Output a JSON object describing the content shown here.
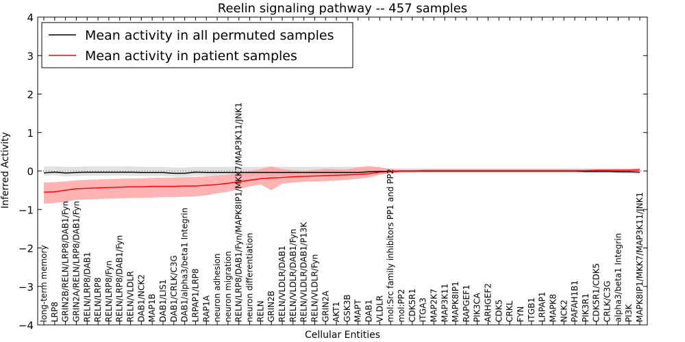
{
  "chart_data": {
    "type": "line",
    "title": "Reelin signaling pathway -- 457 samples",
    "xlabel": "Cellular Entities",
    "ylabel": "Inferred Activity",
    "ylim": [
      -4,
      4
    ],
    "yticks": [
      -4,
      -3,
      -2,
      -1,
      0,
      1,
      2,
      3,
      4
    ],
    "legend_position": "top-left",
    "categories": [
      "long-term memory",
      "LRP8",
      "GRIN2B/RELN/LRP8/DAB1/Fyn",
      "GRIN2A/RELN/LRP8/DAB1/Fyn",
      "RELN/LRP8/DAB1",
      "RELN/LRP8",
      "RELN/LRP8/Fyn",
      "RELN/LRP8/DAB1/Fyn",
      "RELN/VLDLR",
      "DAB1/NCK2",
      "MAP1B",
      "DAB1/LIS1",
      "DAB1/CRLK/C3G",
      "DAB1/alpha3/beta1 Integrin",
      "LRPAP1/LRP8",
      "RAP1A",
      "neuron adhesion",
      "neuron migration",
      "RELN/LRP8/DAB1/Fyn/MAPK8IP1/MKK7/MAP3K11/JNK1",
      "neuron differentiation",
      "RELN",
      "GRIN2B",
      "RELN/VLDLR/DAB1",
      "RELN/VLDLR/DAB1/Fyn",
      "RELN/VLDLR/DAB1/P13K",
      "RELN/VLDLR/Fyn",
      "GRIN2A",
      "AKT1",
      "GSK3B",
      "MAPT",
      "DAB1",
      "VLDLR",
      "mol:Src family inhibitors PP1 and PP2",
      "mol:PP2",
      "CDK5R1",
      "ITGA3",
      "MAP2K7",
      "MAP3K11",
      "MAPK8IP1",
      "RAPGEF1",
      "PIK3CA",
      "ARHGEF2",
      "CDK5",
      "CRKL",
      "FYN",
      "ITGB1",
      "LRPAP1",
      "MAPK8",
      "NCK2",
      "PAFAH1B1",
      "PIK3R1",
      "CDK5R1/CDK5",
      "CRLK/C3G",
      "alpha3/beta1 Integrin",
      "PI3K",
      "MAPK8IP1/MKK7/MAP3K11/JNK1"
    ],
    "series": [
      {
        "name": "Mean activity in all permuted samples",
        "color": "#000000",
        "band_color": "#bdbdbd",
        "values": [
          -0.05,
          -0.03,
          -0.05,
          -0.04,
          -0.03,
          -0.03,
          -0.03,
          -0.03,
          -0.03,
          -0.04,
          -0.04,
          -0.04,
          -0.06,
          -0.06,
          -0.03,
          -0.04,
          -0.04,
          -0.04,
          -0.04,
          -0.04,
          -0.04,
          -0.04,
          -0.04,
          -0.04,
          -0.04,
          -0.04,
          -0.04,
          -0.04,
          -0.04,
          -0.04,
          -0.02,
          -0.01,
          -0.01,
          0.0,
          0.0,
          0.0,
          0.0,
          0.0,
          0.0,
          0.0,
          0.0,
          0.0,
          0.0,
          0.0,
          0.0,
          0.0,
          0.0,
          0.0,
          0.0,
          0.0,
          -0.01,
          -0.01,
          -0.01,
          -0.02,
          -0.02,
          -0.03
        ],
        "lower": [
          -0.12,
          -0.11,
          -0.14,
          -0.13,
          -0.12,
          -0.12,
          -0.12,
          -0.12,
          -0.12,
          -0.13,
          -0.13,
          -0.13,
          -0.15,
          -0.15,
          -0.12,
          -0.13,
          -0.13,
          -0.13,
          -0.13,
          -0.13,
          -0.13,
          -0.13,
          -0.13,
          -0.13,
          -0.13,
          -0.13,
          -0.13,
          -0.13,
          -0.13,
          -0.13,
          -0.09,
          -0.07,
          -0.07,
          -0.05,
          -0.06,
          -0.06,
          -0.06,
          -0.06,
          -0.06,
          -0.06,
          -0.06,
          -0.06,
          -0.06,
          -0.06,
          -0.06,
          -0.06,
          -0.06,
          -0.06,
          -0.06,
          -0.06,
          -0.06,
          -0.06,
          -0.06,
          -0.06,
          -0.07,
          -0.08
        ],
        "upper": [
          0.12,
          0.12,
          0.11,
          0.11,
          0.12,
          0.12,
          0.12,
          0.12,
          0.12,
          0.11,
          0.11,
          0.11,
          0.09,
          0.09,
          0.11,
          0.11,
          0.11,
          0.11,
          0.11,
          0.11,
          0.11,
          0.11,
          0.11,
          0.11,
          0.11,
          0.11,
          0.11,
          0.11,
          0.11,
          0.11,
          0.09,
          0.08,
          0.07,
          0.07,
          0.07,
          0.07,
          0.07,
          0.07,
          0.07,
          0.07,
          0.07,
          0.07,
          0.07,
          0.07,
          0.07,
          0.07,
          0.07,
          0.07,
          0.07,
          0.07,
          0.07,
          0.07,
          0.07,
          0.07,
          0.06,
          0.06
        ]
      },
      {
        "name": "Mean activity in patient samples",
        "color": "#ff0000",
        "band_color": "#ff9999",
        "values": [
          -0.55,
          -0.54,
          -0.5,
          -0.46,
          -0.45,
          -0.44,
          -0.43,
          -0.42,
          -0.41,
          -0.41,
          -0.4,
          -0.4,
          -0.4,
          -0.39,
          -0.39,
          -0.37,
          -0.35,
          -0.32,
          -0.28,
          -0.24,
          -0.2,
          -0.18,
          -0.17,
          -0.15,
          -0.14,
          -0.13,
          -0.12,
          -0.11,
          -0.1,
          -0.09,
          -0.07,
          -0.03,
          -0.02,
          0.0,
          0.0,
          0.01,
          0.01,
          0.01,
          0.01,
          0.01,
          0.01,
          0.01,
          0.01,
          0.01,
          0.01,
          0.01,
          0.01,
          0.01,
          0.01,
          0.01,
          0.01,
          0.02,
          0.02,
          0.02,
          0.02,
          0.03
        ],
        "lower": [
          -0.85,
          -0.83,
          -0.8,
          -0.75,
          -0.74,
          -0.73,
          -0.72,
          -0.71,
          -0.7,
          -0.7,
          -0.69,
          -0.68,
          -0.68,
          -0.67,
          -0.66,
          -0.63,
          -0.58,
          -0.54,
          -0.47,
          -0.4,
          -0.35,
          -0.5,
          -0.33,
          -0.3,
          -0.28,
          -0.27,
          -0.26,
          -0.25,
          -0.23,
          -0.2,
          -0.17,
          -0.1,
          -0.06,
          -0.03,
          -0.03,
          -0.03,
          -0.03,
          -0.03,
          -0.03,
          -0.03,
          -0.03,
          -0.03,
          -0.03,
          -0.03,
          -0.03,
          -0.03,
          -0.03,
          -0.03,
          -0.03,
          -0.03,
          -0.03,
          -0.02,
          -0.02,
          -0.03,
          -0.03,
          -0.03
        ],
        "upper": [
          -0.3,
          -0.29,
          -0.27,
          -0.24,
          -0.23,
          -0.22,
          -0.21,
          -0.2,
          -0.19,
          -0.19,
          -0.18,
          -0.17,
          -0.17,
          -0.16,
          -0.15,
          -0.14,
          -0.12,
          -0.1,
          -0.05,
          0.0,
          0.05,
          0.12,
          0.05,
          0.02,
          0.0,
          0.03,
          0.06,
          0.05,
          0.04,
          0.1,
          0.13,
          0.1,
          0.05,
          0.03,
          0.03,
          0.04,
          0.04,
          0.04,
          0.04,
          0.04,
          0.04,
          0.04,
          0.04,
          0.04,
          0.04,
          0.04,
          0.04,
          0.04,
          0.04,
          0.04,
          0.04,
          0.05,
          0.05,
          0.05,
          0.06,
          0.07
        ]
      }
    ]
  }
}
